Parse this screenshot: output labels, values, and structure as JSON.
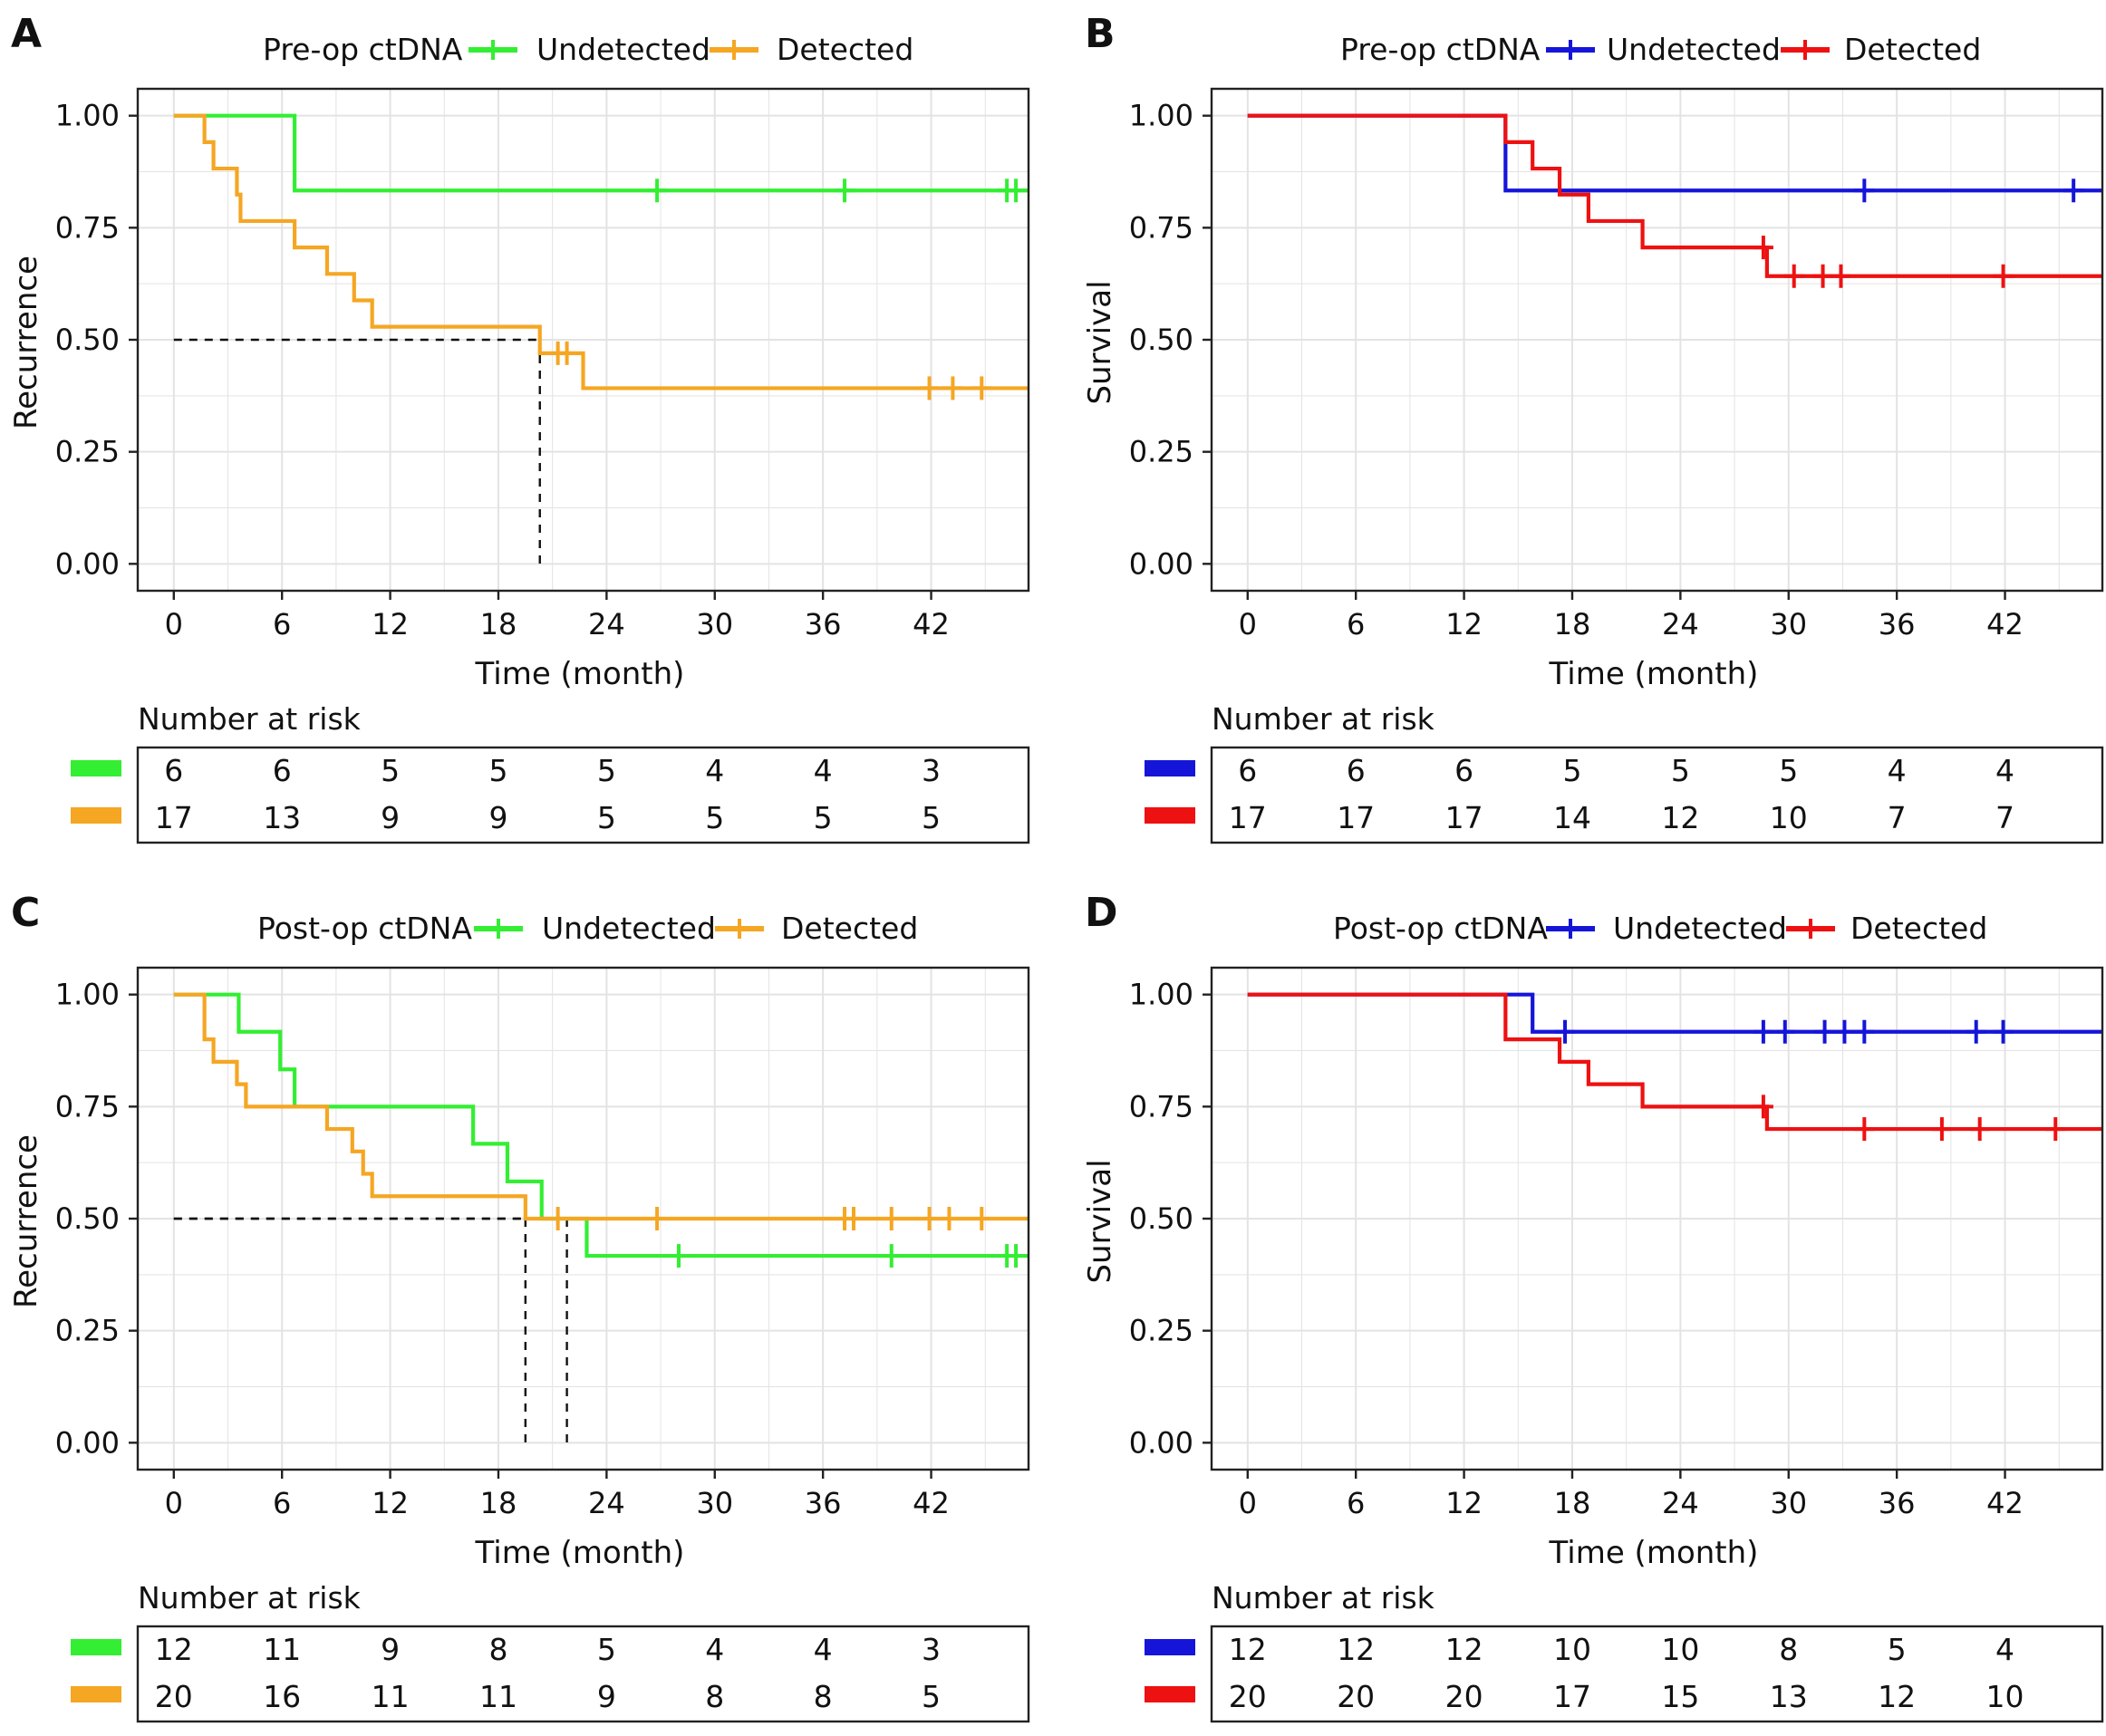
{
  "chart_data": [
    {
      "panel": "A",
      "type": "line",
      "subtype": "kaplan-meier",
      "legend_title": "Pre-op ctDNA",
      "xlabel": "Time (month)",
      "ylabel": "Recurrence",
      "xlim": [
        -2,
        47.4
      ],
      "ylim": [
        -0.06,
        1.06
      ],
      "xticks": [
        0,
        6,
        12,
        18,
        24,
        30,
        36,
        42
      ],
      "yticks": [
        0,
        0.25,
        0.5,
        0.75,
        1.0
      ],
      "ytick_labels": [
        "0.00",
        "0.25",
        "0.50",
        "0.75",
        "1.00"
      ],
      "grid": true,
      "legend_position": "top",
      "median_lines": [
        {
          "x": 20.3,
          "series": "Detected"
        }
      ],
      "series": [
        {
          "name": "Undetected",
          "color": "#33ee33",
          "steps": [
            [
              0,
              1.0
            ],
            [
              6.7,
              0.833
            ],
            [
              47.4,
              0.833
            ]
          ],
          "censors": [
            [
              26.8,
              0.833
            ],
            [
              37.2,
              0.833
            ],
            [
              46.2,
              0.833
            ],
            [
              46.7,
              0.833
            ]
          ]
        },
        {
          "name": "Detected",
          "color": "#f5a623",
          "steps": [
            [
              0,
              1.0
            ],
            [
              1.7,
              0.941
            ],
            [
              2.2,
              0.882
            ],
            [
              3.5,
              0.824
            ],
            [
              3.7,
              0.765
            ],
            [
              6.7,
              0.706
            ],
            [
              8.5,
              0.647
            ],
            [
              10.0,
              0.588
            ],
            [
              11.0,
              0.529
            ],
            [
              20.3,
              0.47
            ],
            [
              22.7,
              0.392
            ],
            [
              47.4,
              0.392
            ]
          ],
          "censors": [
            [
              21.3,
              0.47
            ],
            [
              21.8,
              0.47
            ],
            [
              41.9,
              0.392
            ],
            [
              43.2,
              0.392
            ],
            [
              44.8,
              0.392
            ]
          ]
        }
      ],
      "risk_table": {
        "title": "Number at risk",
        "rows": [
          [
            "6",
            "6",
            "5",
            "5",
            "5",
            "4",
            "4",
            "3"
          ],
          [
            "17",
            "13",
            "9",
            "9",
            "5",
            "5",
            "5",
            "5"
          ]
        ]
      }
    },
    {
      "panel": "B",
      "type": "line",
      "subtype": "kaplan-meier",
      "legend_title": "Pre-op ctDNA",
      "xlabel": "Time (month)",
      "ylabel": "Survival",
      "xlim": [
        -2,
        47.4
      ],
      "ylim": [
        -0.06,
        1.06
      ],
      "xticks": [
        0,
        6,
        12,
        18,
        24,
        30,
        36,
        42
      ],
      "yticks": [
        0,
        0.25,
        0.5,
        0.75,
        1.0
      ],
      "ytick_labels": [
        "0.00",
        "0.25",
        "0.50",
        "0.75",
        "1.00"
      ],
      "grid": true,
      "legend_position": "top",
      "median_lines": [],
      "series": [
        {
          "name": "Undetected",
          "color": "#1515d9",
          "steps": [
            [
              0,
              1.0
            ],
            [
              14.3,
              0.833
            ],
            [
              47.4,
              0.833
            ]
          ],
          "censors": [
            [
              34.2,
              0.833
            ],
            [
              45.8,
              0.833
            ]
          ]
        },
        {
          "name": "Detected",
          "color": "#ee1111",
          "steps": [
            [
              0,
              1.0
            ],
            [
              14.3,
              0.941
            ],
            [
              15.8,
              0.882
            ],
            [
              17.3,
              0.824
            ],
            [
              18.9,
              0.765
            ],
            [
              21.9,
              0.706
            ],
            [
              28.8,
              0.642
            ],
            [
              47.4,
              0.642
            ]
          ],
          "censors": [
            [
              28.6,
              0.706
            ],
            [
              30.3,
              0.642
            ],
            [
              31.9,
              0.642
            ],
            [
              32.9,
              0.642
            ],
            [
              41.9,
              0.642
            ]
          ]
        }
      ],
      "risk_table": {
        "title": "Number at risk",
        "rows": [
          [
            "6",
            "6",
            "6",
            "5",
            "5",
            "5",
            "4",
            "4"
          ],
          [
            "17",
            "17",
            "17",
            "14",
            "12",
            "10",
            "7",
            "7"
          ]
        ]
      }
    },
    {
      "panel": "C",
      "type": "line",
      "subtype": "kaplan-meier",
      "legend_title": "Post-op ctDNA",
      "xlabel": "Time (month)",
      "ylabel": "Recurrence",
      "xlim": [
        -2,
        47.4
      ],
      "ylim": [
        -0.06,
        1.06
      ],
      "xticks": [
        0,
        6,
        12,
        18,
        24,
        30,
        36,
        42
      ],
      "yticks": [
        0,
        0.25,
        0.5,
        0.75,
        1.0
      ],
      "ytick_labels": [
        "0.00",
        "0.25",
        "0.50",
        "0.75",
        "1.00"
      ],
      "grid": true,
      "legend_position": "top",
      "median_lines": [
        {
          "x": 19.5,
          "series": "Detected"
        },
        {
          "x": 21.8,
          "series": "Undetected"
        }
      ],
      "series": [
        {
          "name": "Undetected",
          "color": "#33ee33",
          "steps": [
            [
              0,
              1.0
            ],
            [
              3.6,
              0.917
            ],
            [
              5.9,
              0.833
            ],
            [
              6.7,
              0.75
            ],
            [
              16.6,
              0.667
            ],
            [
              18.5,
              0.583
            ],
            [
              20.4,
              0.5
            ],
            [
              22.9,
              0.417
            ],
            [
              47.4,
              0.417
            ]
          ],
          "censors": [
            [
              28.0,
              0.417
            ],
            [
              39.8,
              0.417
            ],
            [
              46.2,
              0.417
            ],
            [
              46.7,
              0.417
            ]
          ]
        },
        {
          "name": "Detected",
          "color": "#f5a623",
          "steps": [
            [
              0,
              1.0
            ],
            [
              1.7,
              0.9
            ],
            [
              2.2,
              0.85
            ],
            [
              3.5,
              0.8
            ],
            [
              4.0,
              0.75
            ],
            [
              6.7,
              0.75
            ],
            [
              8.5,
              0.7
            ],
            [
              9.9,
              0.65
            ],
            [
              10.5,
              0.6
            ],
            [
              11.0,
              0.55
            ],
            [
              19.5,
              0.5
            ],
            [
              47.4,
              0.5
            ]
          ],
          "censors": [
            [
              21.3,
              0.5
            ],
            [
              26.8,
              0.5
            ],
            [
              37.2,
              0.5
            ],
            [
              37.7,
              0.5
            ],
            [
              39.8,
              0.5
            ],
            [
              41.9,
              0.5
            ],
            [
              43.0,
              0.5
            ],
            [
              44.8,
              0.5
            ]
          ]
        }
      ],
      "risk_table": {
        "title": "Number at risk",
        "rows": [
          [
            "12",
            "11",
            "9",
            "8",
            "5",
            "4",
            "4",
            "3"
          ],
          [
            "20",
            "16",
            "11",
            "11",
            "9",
            "8",
            "8",
            "5"
          ]
        ]
      }
    },
    {
      "panel": "D",
      "type": "line",
      "subtype": "kaplan-meier",
      "legend_title": "Post-op ctDNA",
      "xlabel": "Time (month)",
      "ylabel": "Survival",
      "xlim": [
        -2,
        47.4
      ],
      "ylim": [
        -0.06,
        1.06
      ],
      "xticks": [
        0,
        6,
        12,
        18,
        24,
        30,
        36,
        42
      ],
      "yticks": [
        0,
        0.25,
        0.5,
        0.75,
        1.0
      ],
      "ytick_labels": [
        "0.00",
        "0.25",
        "0.50",
        "0.75",
        "1.00"
      ],
      "grid": true,
      "legend_position": "top",
      "median_lines": [],
      "series": [
        {
          "name": "Undetected",
          "color": "#1515d9",
          "steps": [
            [
              0,
              1.0
            ],
            [
              15.8,
              0.917
            ],
            [
              47.4,
              0.917
            ]
          ],
          "censors": [
            [
              17.6,
              0.917
            ],
            [
              28.6,
              0.917
            ],
            [
              29.8,
              0.917
            ],
            [
              32.0,
              0.917
            ],
            [
              33.1,
              0.917
            ],
            [
              34.2,
              0.917
            ],
            [
              40.4,
              0.917
            ],
            [
              41.9,
              0.917
            ]
          ]
        },
        {
          "name": "Detected",
          "color": "#ee1111",
          "steps": [
            [
              0,
              1.0
            ],
            [
              14.3,
              0.9
            ],
            [
              17.3,
              0.85
            ],
            [
              18.9,
              0.8
            ],
            [
              21.9,
              0.75
            ],
            [
              28.8,
              0.7
            ],
            [
              47.4,
              0.7
            ]
          ],
          "censors": [
            [
              28.6,
              0.75
            ],
            [
              34.2,
              0.7
            ],
            [
              38.5,
              0.7
            ],
            [
              40.6,
              0.7
            ],
            [
              44.8,
              0.7
            ]
          ]
        }
      ],
      "risk_table": {
        "title": "Number at risk",
        "rows": [
          [
            "12",
            "12",
            "12",
            "10",
            "10",
            "8",
            "5",
            "4"
          ],
          [
            "20",
            "20",
            "20",
            "17",
            "15",
            "13",
            "12",
            "10"
          ]
        ]
      }
    }
  ]
}
